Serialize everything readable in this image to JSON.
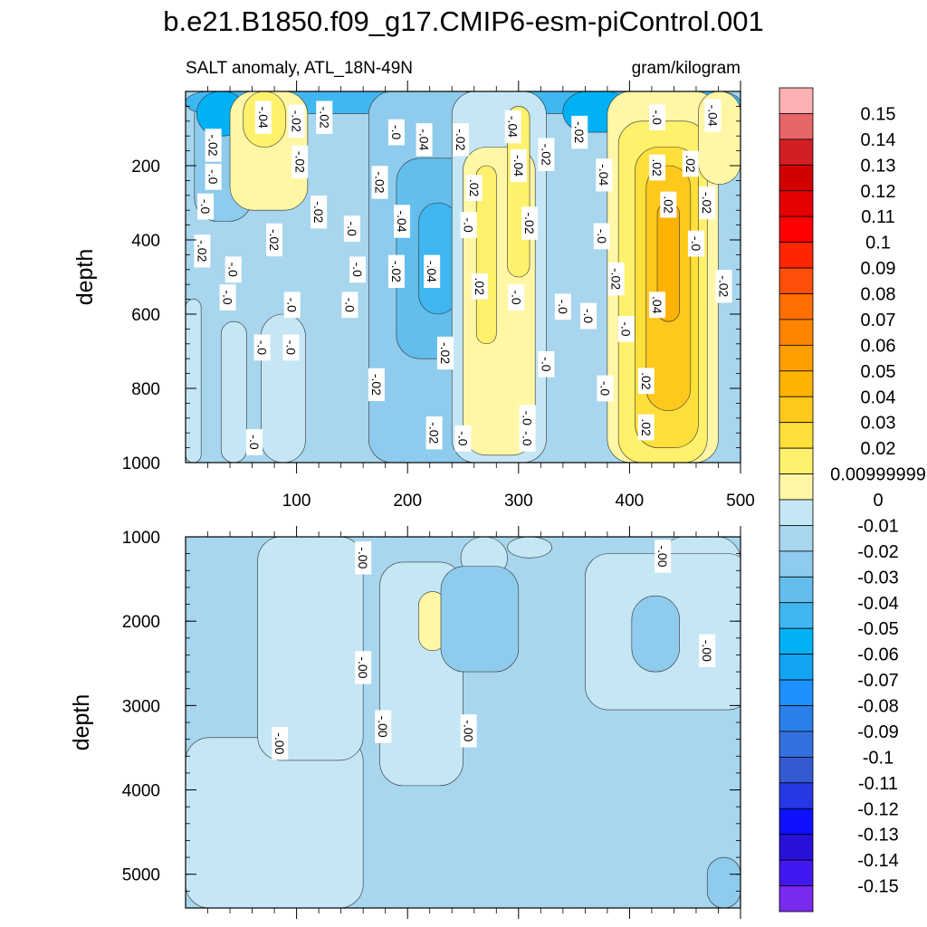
{
  "chart_data": {
    "type": "contour",
    "title": "b.e21.B1850.f09_g17.CMIP6-esm-piControl.001",
    "panels": [
      {
        "subtitle_left": "SALT anomaly, ATL_18N-49N",
        "subtitle_right": "gram/kilogram",
        "xlabel": "",
        "ylabel": "depth",
        "xlim": [
          0,
          500
        ],
        "ylim": [
          0,
          1000
        ],
        "y_inverted": true,
        "x_ticks": [
          100,
          200,
          300,
          400,
          500
        ],
        "y_ticks": [
          200,
          400,
          600,
          800,
          1000
        ],
        "regions": [
          {
            "x": [
              0,
              500
            ],
            "y": [
              0,
              1000
            ],
            "level": -0.01
          },
          {
            "x": [
              8,
              60
            ],
            "y": [
              0,
              350
            ],
            "level": -0.02
          },
          {
            "x": [
              0,
              500
            ],
            "y": [
              0,
              60
            ],
            "level": -0.04
          },
          {
            "x": [
              10,
              55
            ],
            "y": [
              0,
              120
            ],
            "level": -0.05
          },
          {
            "x": [
              340,
              400
            ],
            "y": [
              0,
              110
            ],
            "level": -0.05
          },
          {
            "x": [
              0,
              14
            ],
            "y": [
              560,
              1000
            ],
            "level": 0
          },
          {
            "x": [
              32,
              55
            ],
            "y": [
              620,
              1000
            ],
            "level": 0
          },
          {
            "x": [
              68,
              108
            ],
            "y": [
              600,
              1000
            ],
            "level": 0
          },
          {
            "x": [
              165,
              270
            ],
            "y": [
              0,
              1000
            ],
            "level": -0.02
          },
          {
            "x": [
              190,
              260
            ],
            "y": [
              180,
              720
            ],
            "level": -0.03
          },
          {
            "x": [
              210,
              245
            ],
            "y": [
              300,
              600
            ],
            "level": -0.04
          },
          {
            "x": [
              240,
              325
            ],
            "y": [
              0,
              1000
            ],
            "level": 0
          },
          {
            "x": [
              250,
              315
            ],
            "y": [
              150,
              980
            ],
            "level": 0.01
          },
          {
            "x": [
              262,
              280
            ],
            "y": [
              200,
              680
            ],
            "level": 0.02
          },
          {
            "x": [
              290,
              310
            ],
            "y": [
              40,
              500
            ],
            "level": 0.02
          },
          {
            "x": [
              40,
              110
            ],
            "y": [
              0,
              320
            ],
            "level": 0.01
          },
          {
            "x": [
              52,
              90
            ],
            "y": [
              0,
              150
            ],
            "level": 0.02
          },
          {
            "x": [
              380,
              480
            ],
            "y": [
              0,
              1000
            ],
            "level": 0.01
          },
          {
            "x": [
              390,
              470
            ],
            "y": [
              80,
              1000
            ],
            "level": 0.02
          },
          {
            "x": [
              405,
              462
            ],
            "y": [
              150,
              960
            ],
            "level": 0.03
          },
          {
            "x": [
              415,
              455
            ],
            "y": [
              200,
              860
            ],
            "level": 0.04
          },
          {
            "x": [
              425,
              445
            ],
            "y": [
              300,
              620
            ],
            "level": 0.05
          },
          {
            "x": [
              462,
              500
            ],
            "y": [
              0,
              250
            ],
            "level": 0.01
          }
        ],
        "contour_labels": [
          {
            "text": "-.04",
            "x": 70,
            "y": 70
          },
          {
            "text": "-.02",
            "x": 100,
            "y": 80
          },
          {
            "text": "-.02",
            "x": 125,
            "y": 70
          },
          {
            "text": "-.02",
            "x": 25,
            "y": 145
          },
          {
            "text": "-.0",
            "x": 25,
            "y": 230
          },
          {
            "text": "-.02",
            "x": 103,
            "y": 190
          },
          {
            "text": "-.0",
            "x": 190,
            "y": 110
          },
          {
            "text": "-.04",
            "x": 215,
            "y": 130
          },
          {
            "text": "-.02",
            "x": 248,
            "y": 130
          },
          {
            "text": "-.04",
            "x": 295,
            "y": 95
          },
          {
            "text": "-.02",
            "x": 325,
            "y": 170
          },
          {
            "text": "-.02",
            "x": 355,
            "y": 110
          },
          {
            "text": "-.04",
            "x": 300,
            "y": 200
          },
          {
            "text": "-.0",
            "x": 425,
            "y": 70
          },
          {
            "text": "-.04",
            "x": 475,
            "y": 65
          },
          {
            "text": ".02",
            "x": 425,
            "y": 205
          },
          {
            "text": ".02",
            "x": 455,
            "y": 195
          },
          {
            "text": "-.04",
            "x": 377,
            "y": 225
          },
          {
            "text": ".02",
            "x": 435,
            "y": 305
          },
          {
            "text": "-.02",
            "x": 470,
            "y": 300
          },
          {
            "text": "-.02",
            "x": 175,
            "y": 245
          },
          {
            "text": "-.0",
            "x": 18,
            "y": 310
          },
          {
            "text": ".02",
            "x": 260,
            "y": 260
          },
          {
            "text": "-.0",
            "x": 255,
            "y": 360
          },
          {
            "text": "-.02",
            "x": 310,
            "y": 355
          },
          {
            "text": "-.0",
            "x": 375,
            "y": 390
          },
          {
            "text": "-.02",
            "x": 120,
            "y": 325
          },
          {
            "text": "-.04",
            "x": 195,
            "y": 350
          },
          {
            "text": "-.0",
            "x": 150,
            "y": 370
          },
          {
            "text": "-.02",
            "x": 80,
            "y": 400
          },
          {
            "text": "-.0",
            "x": 460,
            "y": 410
          },
          {
            "text": "-.02",
            "x": 15,
            "y": 430
          },
          {
            "text": "-.0",
            "x": 43,
            "y": 480
          },
          {
            "text": "-.0",
            "x": 155,
            "y": 480
          },
          {
            "text": "-.04",
            "x": 222,
            "y": 485
          },
          {
            "text": "-.02",
            "x": 190,
            "y": 485
          },
          {
            "text": ".02",
            "x": 265,
            "y": 525
          },
          {
            "text": "-.02",
            "x": 388,
            "y": 505
          },
          {
            "text": "-.02",
            "x": 485,
            "y": 525
          },
          {
            "text": "-.0",
            "x": 38,
            "y": 555
          },
          {
            "text": "-.0",
            "x": 148,
            "y": 575
          },
          {
            "text": "-.0",
            "x": 96,
            "y": 575
          },
          {
            "text": "-.0",
            "x": 298,
            "y": 555
          },
          {
            "text": "-.0",
            "x": 340,
            "y": 580
          },
          {
            "text": "-.0",
            "x": 363,
            "y": 605
          },
          {
            "text": ".04",
            "x": 425,
            "y": 575
          },
          {
            "text": "-.0",
            "x": 397,
            "y": 640
          },
          {
            "text": "-.0",
            "x": 69,
            "y": 690
          },
          {
            "text": "-.0",
            "x": 95,
            "y": 690
          },
          {
            "text": "-.02",
            "x": 234,
            "y": 705
          },
          {
            "text": "-.0",
            "x": 325,
            "y": 735
          },
          {
            "text": ".02",
            "x": 415,
            "y": 780
          },
          {
            "text": "-.0",
            "x": 378,
            "y": 800
          },
          {
            "text": "-.02",
            "x": 172,
            "y": 790
          },
          {
            "text": "-.0",
            "x": 308,
            "y": 880
          },
          {
            "text": ".02",
            "x": 415,
            "y": 905
          },
          {
            "text": "-.02",
            "x": 224,
            "y": 920
          },
          {
            "text": "-.0",
            "x": 250,
            "y": 935
          },
          {
            "text": "-.0",
            "x": 308,
            "y": 935
          },
          {
            "text": "-.0",
            "x": 62,
            "y": 945
          }
        ]
      },
      {
        "subtitle_left": "",
        "subtitle_right": "",
        "xlabel": "",
        "ylabel": "depth",
        "xlim": [
          0,
          500
        ],
        "ylim": [
          1000,
          5400
        ],
        "y_inverted": true,
        "x_ticks": [],
        "y_ticks": [
          1000,
          2000,
          3000,
          4000,
          5000
        ],
        "regions": [
          {
            "x": [
              0,
              500
            ],
            "y": [
              1000,
              5400
            ],
            "level": -0.01
          },
          {
            "x": [
              0,
              160
            ],
            "y": [
              3380,
              5400
            ],
            "level": 0
          },
          {
            "x": [
              65,
              160
            ],
            "y": [
              1000,
              3650
            ],
            "level": 0
          },
          {
            "x": [
              175,
              250
            ],
            "y": [
              1300,
              3950
            ],
            "level": 0
          },
          {
            "x": [
              210,
              235
            ],
            "y": [
              1650,
              2350
            ],
            "level": 0.01
          },
          {
            "x": [
              248,
              290
            ],
            "y": [
              1000,
              1500
            ],
            "level": 0
          },
          {
            "x": [
              290,
              330
            ],
            "y": [
              1000,
              1250
            ],
            "level": 0
          },
          {
            "x": [
              428,
              500
            ],
            "y": [
              1000,
              2400
            ],
            "level": 0
          },
          {
            "x": [
              360,
              510
            ],
            "y": [
              1200,
              3050
            ],
            "level": 0
          },
          {
            "x": [
              230,
              300
            ],
            "y": [
              1350,
              2600
            ],
            "level": -0.02
          },
          {
            "x": [
              402,
              445
            ],
            "y": [
              1700,
              2600
            ],
            "level": -0.02
          },
          {
            "x": [
              470,
              500
            ],
            "y": [
              4800,
              5400
            ],
            "level": -0.02
          }
        ],
        "contour_labels": [
          {
            "text": "-.00",
            "x": 160,
            "y": 1250
          },
          {
            "text": "-.00",
            "x": 430,
            "y": 1230
          },
          {
            "text": "-.00",
            "x": 470,
            "y": 2350
          },
          {
            "text": "-.00",
            "x": 160,
            "y": 2550
          },
          {
            "text": "-.00",
            "x": 178,
            "y": 3250
          },
          {
            "text": "-.00",
            "x": 255,
            "y": 3300
          },
          {
            "text": "-.00",
            "x": 85,
            "y": 3450
          }
        ]
      }
    ],
    "colorbar": {
      "labels": [
        "0.15",
        "0.14",
        "0.13",
        "0.12",
        "0.11",
        "0.1",
        "0.09",
        "0.08",
        "0.07",
        "0.06",
        "0.05",
        "0.04",
        "0.03",
        "0.02",
        "0.00999999",
        "0",
        "-0.01",
        "-0.02",
        "-0.03",
        "-0.04",
        "-0.05",
        "-0.06",
        "-0.07",
        "-0.08",
        "-0.09",
        "-0.1",
        "-0.11",
        "-0.12",
        "-0.13",
        "-0.14",
        "-0.15"
      ],
      "levels": [
        0.15,
        0.14,
        0.13,
        0.12,
        0.11,
        0.1,
        0.09,
        0.08,
        0.07,
        0.06,
        0.05,
        0.04,
        0.03,
        0.02,
        0.01,
        0,
        -0.01,
        -0.02,
        -0.03,
        -0.04,
        -0.05,
        -0.06,
        -0.07,
        -0.08,
        -0.09,
        -0.1,
        -0.11,
        -0.12,
        -0.13,
        -0.14,
        -0.15
      ],
      "colors": [
        "#fdb0b3",
        "#e66567",
        "#d21f25",
        "#d30000",
        "#e60000",
        "#ff0000",
        "#ff2600",
        "#ff4f0a",
        "#ff6e00",
        "#ff8500",
        "#ff9e00",
        "#ffb300",
        "#ffc81c",
        "#ffdf3a",
        "#fff16b",
        "#fff7a6",
        "#c5e6f4",
        "#a7d6ee",
        "#8ecbec",
        "#63beee",
        "#40b7f0",
        "#00b1f6",
        "#12a3f3",
        "#1e90ff",
        "#2a7fe9",
        "#3370e0",
        "#3559d1",
        "#2637e6",
        "#0f10ff",
        "#2710d7",
        "#4218f0",
        "#7a29ee"
      ]
    }
  }
}
